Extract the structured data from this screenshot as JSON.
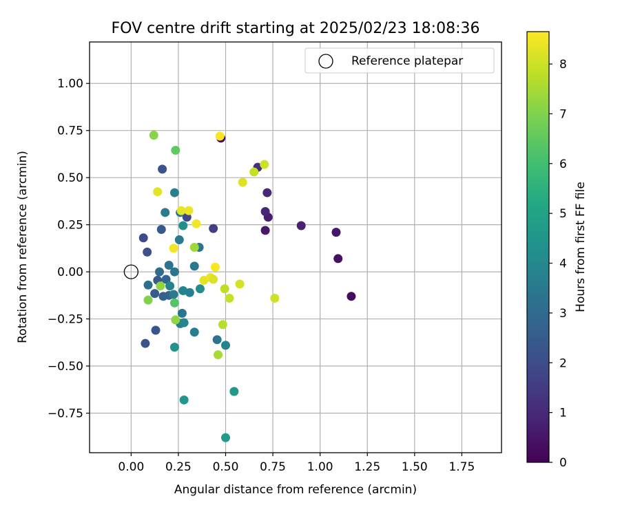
{
  "chart_data": {
    "type": "scatter",
    "title": "FOV centre drift starting at 2025/02/23 18:08:36",
    "xlabel": "Angular distance from reference (arcmin)",
    "ylabel": "Rotation from reference (arcmin)",
    "colorbar_label": "Hours from first FF file",
    "colormap": "viridis",
    "xlim": [
      -0.22,
      1.96
    ],
    "ylim": [
      -0.96,
      1.22
    ],
    "x_ticks": [
      0.0,
      0.25,
      0.5,
      0.75,
      1.0,
      1.25,
      1.5,
      1.75
    ],
    "x_tick_labels": [
      "0.00",
      "0.25",
      "0.50",
      "0.75",
      "1.00",
      "1.25",
      "1.50",
      "1.75"
    ],
    "y_ticks": [
      -0.75,
      -0.5,
      -0.25,
      0.0,
      0.25,
      0.5,
      0.75,
      1.0
    ],
    "y_tick_labels": [
      "−0.75",
      "−0.50",
      "−0.25",
      "0.00",
      "0.25",
      "0.50",
      "0.75",
      "1.00"
    ],
    "colorbar_range": [
      0,
      8.65
    ],
    "colorbar_ticks": [
      0,
      1,
      2,
      3,
      4,
      5,
      6,
      7,
      8
    ],
    "colorbar_tick_labels": [
      "0",
      "1",
      "2",
      "3",
      "4",
      "5",
      "6",
      "7",
      "8"
    ],
    "grid": true,
    "legend": {
      "position": "upper-right",
      "label": "Reference platepar"
    },
    "reference_point": {
      "x": 0.0,
      "y": 0.0
    },
    "points": [
      {
        "x": 0.475,
        "y": 0.71,
        "h": 0.1
      },
      {
        "x": 1.165,
        "y": -0.13,
        "h": 0.3
      },
      {
        "x": 1.095,
        "y": 0.07,
        "h": 0.4
      },
      {
        "x": 1.085,
        "y": 0.21,
        "h": 0.5
      },
      {
        "x": 0.9,
        "y": 0.245,
        "h": 0.8
      },
      {
        "x": 0.71,
        "y": 0.22,
        "h": 0.6
      },
      {
        "x": 0.725,
        "y": 0.29,
        "h": 0.7
      },
      {
        "x": 0.71,
        "y": 0.32,
        "h": 0.9
      },
      {
        "x": 0.72,
        "y": 0.42,
        "h": 1.0
      },
      {
        "x": 0.67,
        "y": 0.555,
        "h": 1.2
      },
      {
        "x": 0.435,
        "y": 0.23,
        "h": 1.6
      },
      {
        "x": 0.295,
        "y": 0.29,
        "h": 1.8
      },
      {
        "x": 0.065,
        "y": 0.18,
        "h": 2.0
      },
      {
        "x": 0.085,
        "y": 0.105,
        "h": 2.1
      },
      {
        "x": 0.165,
        "y": 0.545,
        "h": 2.2
      },
      {
        "x": 0.16,
        "y": 0.225,
        "h": 2.4
      },
      {
        "x": 0.13,
        "y": -0.31,
        "h": 2.3
      },
      {
        "x": 0.075,
        "y": -0.38,
        "h": 2.2
      },
      {
        "x": 0.125,
        "y": -0.115,
        "h": 2.5
      },
      {
        "x": 0.14,
        "y": -0.045,
        "h": 2.4
      },
      {
        "x": 0.17,
        "y": -0.13,
        "h": 2.6
      },
      {
        "x": 0.2,
        "y": -0.125,
        "h": 2.7
      },
      {
        "x": 0.185,
        "y": -0.04,
        "h": 2.8
      },
      {
        "x": 0.15,
        "y": 0.0,
        "h": 3.0
      },
      {
        "x": 0.09,
        "y": -0.07,
        "h": 3.2
      },
      {
        "x": 0.2,
        "y": 0.035,
        "h": 3.3
      },
      {
        "x": 0.23,
        "y": 0.0,
        "h": 3.4
      },
      {
        "x": 0.255,
        "y": 0.17,
        "h": 3.5
      },
      {
        "x": 0.18,
        "y": 0.315,
        "h": 3.6
      },
      {
        "x": 0.23,
        "y": 0.42,
        "h": 3.7
      },
      {
        "x": 0.26,
        "y": 0.315,
        "h": 3.3
      },
      {
        "x": 0.205,
        "y": -0.075,
        "h": 3.8
      },
      {
        "x": 0.225,
        "y": -0.12,
        "h": 3.5
      },
      {
        "x": 0.27,
        "y": -0.22,
        "h": 3.4
      },
      {
        "x": 0.26,
        "y": -0.275,
        "h": 3.6
      },
      {
        "x": 0.28,
        "y": -0.27,
        "h": 3.9
      },
      {
        "x": 0.31,
        "y": -0.11,
        "h": 3.7
      },
      {
        "x": 0.275,
        "y": -0.1,
        "h": 3.8
      },
      {
        "x": 0.335,
        "y": -0.32,
        "h": 3.6
      },
      {
        "x": 0.335,
        "y": 0.03,
        "h": 3.5
      },
      {
        "x": 0.36,
        "y": 0.13,
        "h": 3.4
      },
      {
        "x": 0.275,
        "y": 0.245,
        "h": 4.3
      },
      {
        "x": 0.365,
        "y": -0.09,
        "h": 4.2
      },
      {
        "x": 0.455,
        "y": -0.36,
        "h": 3.3
      },
      {
        "x": 0.5,
        "y": -0.39,
        "h": 3.8
      },
      {
        "x": 0.23,
        "y": -0.4,
        "h": 4.4
      },
      {
        "x": 0.28,
        "y": -0.68,
        "h": 4.5
      },
      {
        "x": 0.545,
        "y": -0.635,
        "h": 4.6
      },
      {
        "x": 0.5,
        "y": -0.88,
        "h": 4.7
      },
      {
        "x": 0.23,
        "y": -0.165,
        "h": 6.3
      },
      {
        "x": 0.235,
        "y": 0.645,
        "h": 6.5
      },
      {
        "x": 0.09,
        "y": -0.15,
        "h": 7.0
      },
      {
        "x": 0.155,
        "y": -0.075,
        "h": 7.2
      },
      {
        "x": 0.12,
        "y": 0.725,
        "h": 7.1
      },
      {
        "x": 0.235,
        "y": -0.255,
        "h": 7.2
      },
      {
        "x": 0.335,
        "y": 0.13,
        "h": 7.4
      },
      {
        "x": 0.46,
        "y": -0.44,
        "h": 7.5
      },
      {
        "x": 0.485,
        "y": -0.28,
        "h": 7.7
      },
      {
        "x": 0.495,
        "y": -0.09,
        "h": 7.8
      },
      {
        "x": 0.52,
        "y": -0.14,
        "h": 7.9
      },
      {
        "x": 0.575,
        "y": -0.065,
        "h": 8.1
      },
      {
        "x": 0.65,
        "y": 0.53,
        "h": 7.9
      },
      {
        "x": 0.705,
        "y": 0.57,
        "h": 8.0
      },
      {
        "x": 0.59,
        "y": 0.475,
        "h": 8.2
      },
      {
        "x": 0.76,
        "y": -0.14,
        "h": 8.0
      },
      {
        "x": 0.14,
        "y": 0.425,
        "h": 8.3
      },
      {
        "x": 0.265,
        "y": 0.325,
        "h": 8.3
      },
      {
        "x": 0.305,
        "y": 0.325,
        "h": 8.4
      },
      {
        "x": 0.345,
        "y": 0.255,
        "h": 8.5
      },
      {
        "x": 0.225,
        "y": 0.125,
        "h": 8.5
      },
      {
        "x": 0.385,
        "y": -0.045,
        "h": 8.3
      },
      {
        "x": 0.42,
        "y": -0.03,
        "h": 8.4
      },
      {
        "x": 0.435,
        "y": -0.04,
        "h": 8.2
      },
      {
        "x": 0.445,
        "y": 0.025,
        "h": 8.6
      },
      {
        "x": 0.47,
        "y": 0.72,
        "h": 8.6
      }
    ]
  }
}
